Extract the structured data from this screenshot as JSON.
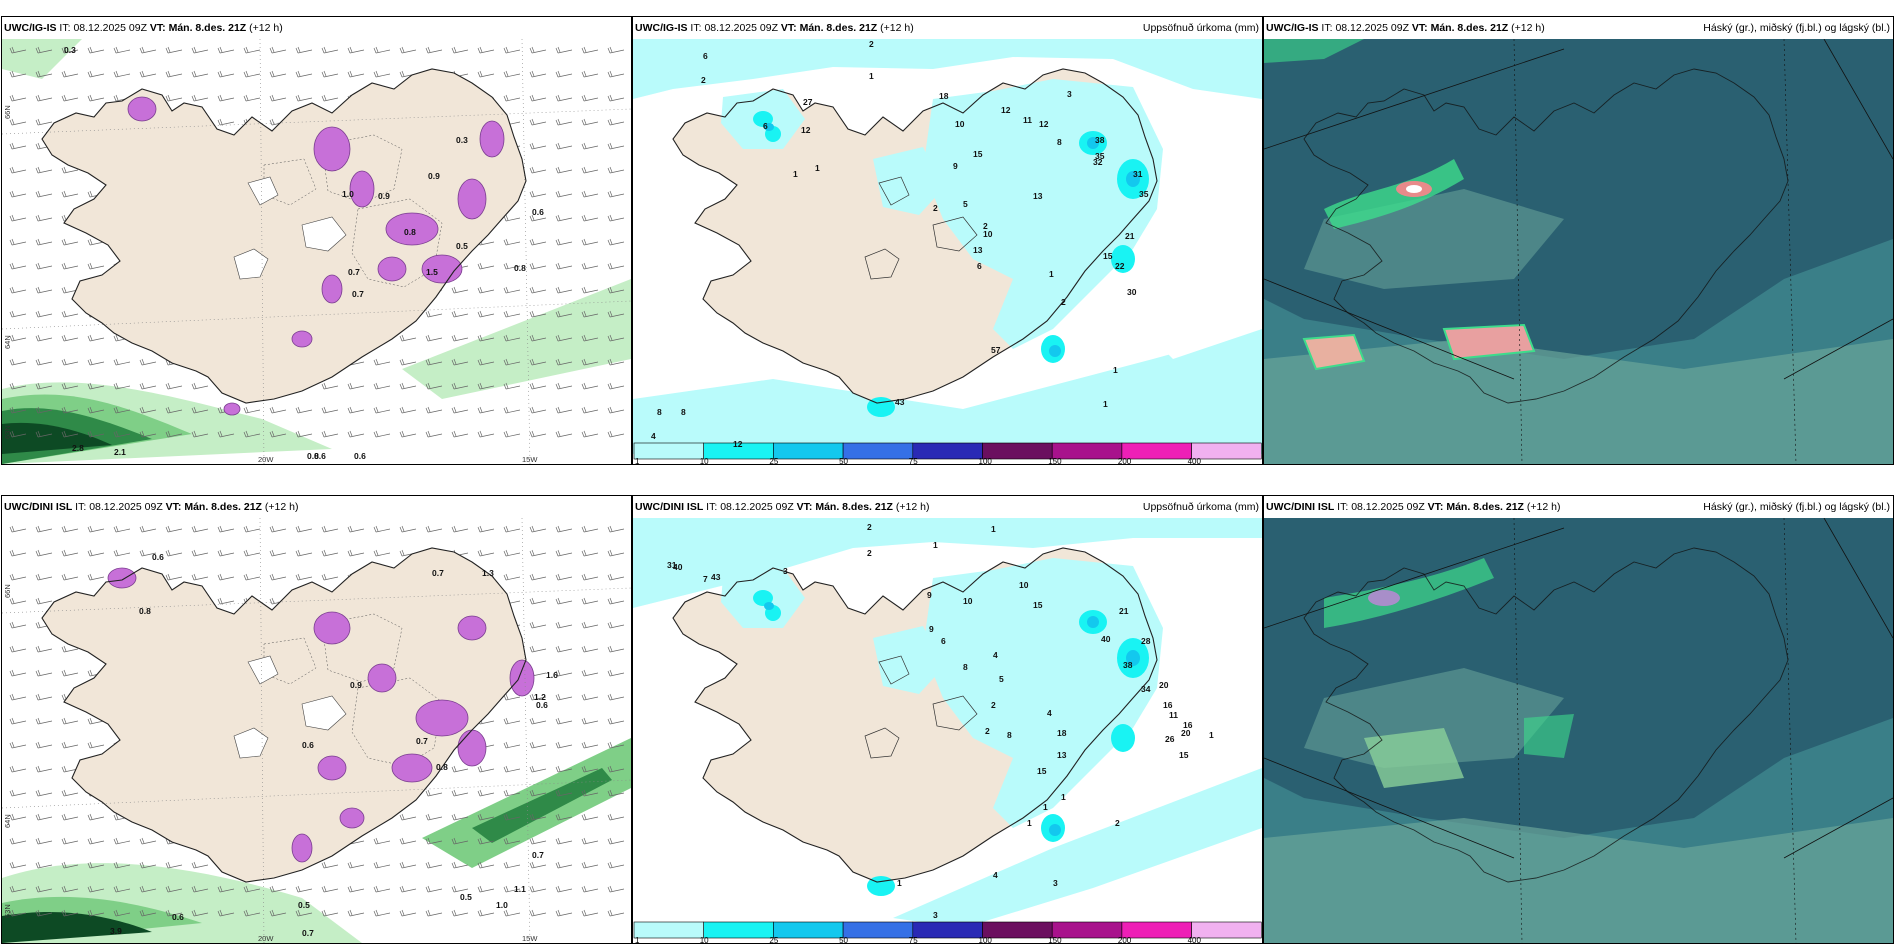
{
  "palette": {
    "land": "#f1e6d8",
    "coast": "#222222",
    "purple": "#c770d8",
    "purpleDark": "#7a3d8f",
    "green1": "#c5eec6",
    "green2": "#7fcf87",
    "green3": "#2f8a48",
    "green4": "#0d4a24",
    "precip1": "#a8f6f6",
    "precip2": "#11e6e6",
    "cloud": "#3a7f88",
    "cloudDark": "#26566a",
    "cloudLight": "#6aa59a",
    "cloudGreen": "#3ddc8c"
  },
  "panels": [
    {
      "id": "ig-precipitation",
      "model": "UWC/IG-IS",
      "issue_prefix": "IT:",
      "issue": "08.12.2025 09Z",
      "valid_prefix": "VT:",
      "valid": "Mán. 8.des. 21Z",
      "lead": "(+12 h)",
      "right_title": "",
      "axis": {
        "lat": [
          "66N",
          "64N",
          "63N"
        ],
        "lon": [
          "20W",
          "15W"
        ]
      },
      "labels": [
        "0.3",
        "2.8",
        "2.1",
        "0.8",
        "0.6",
        "0.6",
        "0.3",
        "1.0",
        "0.9",
        "0.8",
        "0.7",
        "1.5",
        "0.5",
        "0.6",
        "0.9",
        "0.7",
        "0.8"
      ]
    },
    {
      "id": "ig-accumulated",
      "model": "UWC/IG-IS",
      "issue_prefix": "IT:",
      "issue": "08.12.2025 09Z",
      "valid_prefix": "VT:",
      "valid": "Mán. 8.des. 21Z",
      "lead": "(+12 h)",
      "right_title": "Uppsöfnuð úrkoma (mm)",
      "labels": [
        "6",
        "2",
        "2",
        "1",
        "18",
        "12",
        "11",
        "10",
        "12",
        "8",
        "3",
        "38",
        "35",
        "32",
        "31",
        "35",
        "21",
        "15",
        "22",
        "30",
        "13",
        "13",
        "10",
        "6",
        "5",
        "2",
        "2",
        "1",
        "2",
        "9",
        "15",
        "27",
        "12",
        "6",
        "1",
        "1",
        "8",
        "8",
        "4",
        "12",
        "43",
        "57",
        "1",
        "1"
      ],
      "colorbar": [
        "1",
        "10",
        "25",
        "50",
        "75",
        "100",
        "150",
        "200",
        "400"
      ]
    },
    {
      "id": "ig-cloud",
      "model": "UWC/IG-IS",
      "issue_prefix": "IT:",
      "issue": "08.12.2025 09Z",
      "valid_prefix": "VT:",
      "valid": "Mán. 8.des. 21Z",
      "lead": "(+12 h)",
      "right_title": "Háský (gr.), miðský (fj.bl.) og lágský (bl.)"
    },
    {
      "id": "dini-precipitation",
      "model": "UWC/DINI ISL",
      "issue_prefix": "IT:",
      "issue": "08.12.2025 09Z",
      "valid_prefix": "VT:",
      "valid": "Mán. 8.des. 21Z",
      "lead": "(+12 h)",
      "right_title": "",
      "axis": {
        "lat": [
          "66N",
          "64N",
          "63N"
        ],
        "lon": [
          "20W",
          "15W"
        ]
      },
      "labels": [
        "0.6",
        "3.9",
        "0.7",
        "0.7",
        "0.5",
        "1.0",
        "1.1",
        "0.7",
        "1.3",
        "0.6",
        "0.8",
        "0.9",
        "0.6",
        "1.2",
        "0.8",
        "0.7",
        "1.6",
        "0.6",
        "0.5"
      ]
    },
    {
      "id": "dini-accumulated",
      "model": "UWC/DINI ISL",
      "issue_prefix": "IT:",
      "issue": "08.12.2025 09Z",
      "valid_prefix": "VT:",
      "valid": "Mán. 8.des. 21Z",
      "lead": "(+12 h)",
      "right_title": "Uppsöfnuð úrkoma (mm)",
      "labels": [
        "2",
        "1",
        "2",
        "1",
        "10",
        "15",
        "21",
        "40",
        "28",
        "38",
        "34",
        "20",
        "16",
        "11",
        "16",
        "20",
        "26",
        "15",
        "1",
        "2",
        "1",
        "1",
        "4",
        "3",
        "31",
        "7",
        "3",
        "9",
        "10",
        "9",
        "6",
        "8",
        "4",
        "5",
        "2",
        "8",
        "4",
        "18",
        "13",
        "15",
        "2",
        "1",
        "1",
        "3",
        "40",
        "43"
      ],
      "colorbar": [
        "1",
        "10",
        "25",
        "50",
        "75",
        "100",
        "150",
        "200",
        "400"
      ]
    },
    {
      "id": "dini-cloud",
      "model": "UWC/DINI ISL",
      "issue_prefix": "IT:",
      "issue": "08.12.2025 09Z",
      "valid_prefix": "VT:",
      "valid": "Mán. 8.des. 21Z",
      "lead": "(+12 h)",
      "right_title": "Háský (gr.), miðský (fj.bl.) og lágský (bl.)"
    }
  ],
  "colorbar_colors": [
    "#b9fbfb",
    "#19f3f3",
    "#13c8ee",
    "#3570e6",
    "#2a2ab5",
    "#6b0f5f",
    "#a8128c",
    "#ee1fb6",
    "#f1b1f0"
  ]
}
